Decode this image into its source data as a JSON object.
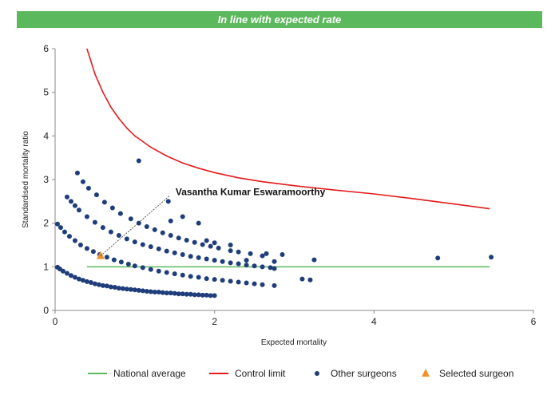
{
  "banner": {
    "text": "In line with expected rate"
  },
  "chart_data": {
    "type": "scatter",
    "xlabel": "Expected mortality",
    "ylabel": "Standardised mortality ratio",
    "xlim": [
      0,
      6
    ],
    "ylim": [
      0,
      6
    ],
    "xticks": [
      0,
      2,
      4,
      6
    ],
    "yticks": [
      0,
      1,
      2,
      3,
      4,
      5,
      6
    ],
    "grid": false,
    "legend_position": "bottom",
    "colors": {
      "national": "#5cb85c",
      "control": "#e41a1c",
      "others": "#1f3d7a",
      "selected": "#f0922b"
    },
    "legend": [
      {
        "key": "national",
        "label": "National average",
        "kind": "line"
      },
      {
        "key": "control",
        "label": "Control limit",
        "kind": "line"
      },
      {
        "key": "others",
        "label": "Other surgeons",
        "kind": "dot"
      },
      {
        "key": "selected",
        "label": "Selected surgeon",
        "kind": "triangle"
      }
    ],
    "national_average": {
      "y": 1,
      "x": [
        0.4,
        5.45
      ]
    },
    "control_limit": {
      "x": [
        0.4,
        0.5,
        0.6,
        0.7,
        0.8,
        0.9,
        1.0,
        1.2,
        1.4,
        1.6,
        1.8,
        2.0,
        2.3,
        2.6,
        3.0,
        3.5,
        4.0,
        4.5,
        5.0,
        5.45
      ],
      "y": [
        6.0,
        5.42,
        5.0,
        4.66,
        4.4,
        4.18,
        4.0,
        3.74,
        3.54,
        3.38,
        3.26,
        3.16,
        3.04,
        2.95,
        2.86,
        2.76,
        2.67,
        2.56,
        2.44,
        2.33
      ]
    },
    "selected_surgeon": {
      "name": "Vasantha Kumar Eswaramoorthy",
      "x": 0.57,
      "y": 1.25
    },
    "others": {
      "x": [
        0.03,
        0.06,
        0.1,
        0.15,
        0.2,
        0.25,
        0.3,
        0.35,
        0.4,
        0.45,
        0.5,
        0.55,
        0.6,
        0.65,
        0.7,
        0.75,
        0.8,
        0.85,
        0.9,
        0.95,
        1.0,
        1.05,
        1.1,
        1.15,
        1.2,
        1.25,
        1.3,
        1.35,
        1.4,
        1.45,
        1.5,
        1.55,
        1.6,
        1.65,
        1.7,
        1.75,
        1.8,
        1.85,
        1.9,
        1.95,
        2.0,
        0.03,
        0.07,
        0.12,
        0.18,
        0.25,
        0.32,
        0.4,
        0.48,
        0.56,
        0.65,
        0.74,
        0.83,
        0.92,
        1.0,
        1.1,
        1.2,
        1.3,
        1.4,
        1.5,
        1.6,
        1.7,
        1.8,
        1.9,
        2.0,
        2.1,
        2.2,
        2.3,
        2.4,
        2.5,
        2.6,
        2.75,
        0.15,
        0.2,
        0.25,
        0.3,
        0.4,
        0.5,
        0.6,
        0.7,
        0.8,
        0.9,
        1.0,
        1.1,
        1.2,
        1.3,
        1.4,
        1.5,
        1.6,
        1.7,
        1.8,
        1.9,
        2.0,
        2.1,
        2.2,
        2.3,
        2.4,
        2.5,
        2.6,
        2.7,
        2.75,
        0.28,
        0.35,
        0.42,
        0.52,
        0.62,
        0.72,
        0.82,
        0.95,
        1.05,
        1.15,
        1.25,
        1.35,
        1.45,
        1.55,
        1.65,
        1.75,
        1.85,
        1.95,
        2.05,
        2.2,
        2.3,
        2.45,
        2.6,
        1.05,
        1.42,
        1.6,
        1.8,
        1.9,
        2.0,
        2.2,
        2.4,
        2.65,
        2.75,
        2.85,
        3.1,
        3.2,
        3.25,
        4.8,
        5.47,
        1.45
      ],
      "y": [
        0.99,
        0.95,
        0.9,
        0.85,
        0.8,
        0.76,
        0.72,
        0.69,
        0.66,
        0.64,
        0.61,
        0.59,
        0.57,
        0.56,
        0.54,
        0.53,
        0.51,
        0.5,
        0.49,
        0.48,
        0.47,
        0.46,
        0.45,
        0.44,
        0.43,
        0.42,
        0.42,
        0.41,
        0.4,
        0.4,
        0.39,
        0.38,
        0.38,
        0.37,
        0.37,
        0.36,
        0.36,
        0.35,
        0.35,
        0.34,
        0.34,
        1.98,
        1.9,
        1.8,
        1.7,
        1.6,
        1.5,
        1.42,
        1.35,
        1.28,
        1.22,
        1.16,
        1.11,
        1.06,
        1.02,
        0.98,
        0.94,
        0.9,
        0.87,
        0.84,
        0.81,
        0.78,
        0.76,
        0.73,
        0.71,
        0.69,
        0.67,
        0.65,
        0.63,
        0.61,
        0.59,
        0.57,
        2.6,
        2.5,
        2.4,
        2.3,
        2.15,
        2.02,
        1.9,
        1.8,
        1.72,
        1.64,
        1.57,
        1.51,
        1.46,
        1.41,
        1.36,
        1.32,
        1.28,
        1.24,
        1.21,
        1.18,
        1.15,
        1.12,
        1.09,
        1.07,
        1.04,
        1.02,
        1.0,
        0.98,
        0.96,
        3.15,
        2.95,
        2.8,
        2.65,
        2.48,
        2.35,
        2.22,
        2.1,
        2.0,
        1.92,
        1.85,
        1.78,
        1.72,
        1.66,
        1.61,
        1.56,
        1.51,
        1.47,
        1.43,
        1.37,
        1.34,
        1.3,
        1.25,
        3.43,
        2.5,
        2.15,
        2.0,
        1.6,
        1.55,
        1.5,
        1.15,
        1.3,
        1.12,
        1.28,
        0.72,
        0.7,
        1.16,
        1.2,
        1.22,
        2.05
      ]
    }
  }
}
